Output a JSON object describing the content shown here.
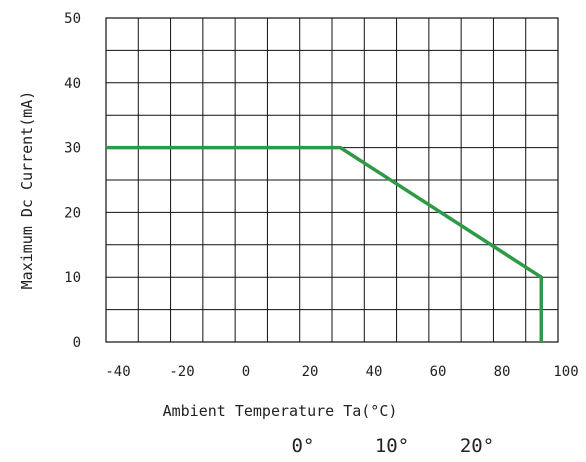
{
  "chart_data": {
    "type": "line",
    "title": "",
    "xlabel": "Ambient Temperature Ta(°C)",
    "ylabel": "Maximum Dc Current(mA)",
    "xlim": [
      -45,
      90
    ],
    "ylim": [
      0,
      50
    ],
    "grid": true,
    "x_tick_labels": [
      "-40",
      "-20",
      "0",
      "20",
      "40",
      "60",
      "80",
      "100"
    ],
    "y_tick_labels": [
      "0",
      "10",
      "20",
      "30",
      "40",
      "50"
    ],
    "line_color": "#2e9a47",
    "series": [
      {
        "x": [
          -45,
          25,
          85,
          85
        ],
        "y": [
          30,
          30,
          10,
          0
        ]
      }
    ],
    "extra_labels": [
      "0°",
      "10°",
      "20°"
    ]
  }
}
